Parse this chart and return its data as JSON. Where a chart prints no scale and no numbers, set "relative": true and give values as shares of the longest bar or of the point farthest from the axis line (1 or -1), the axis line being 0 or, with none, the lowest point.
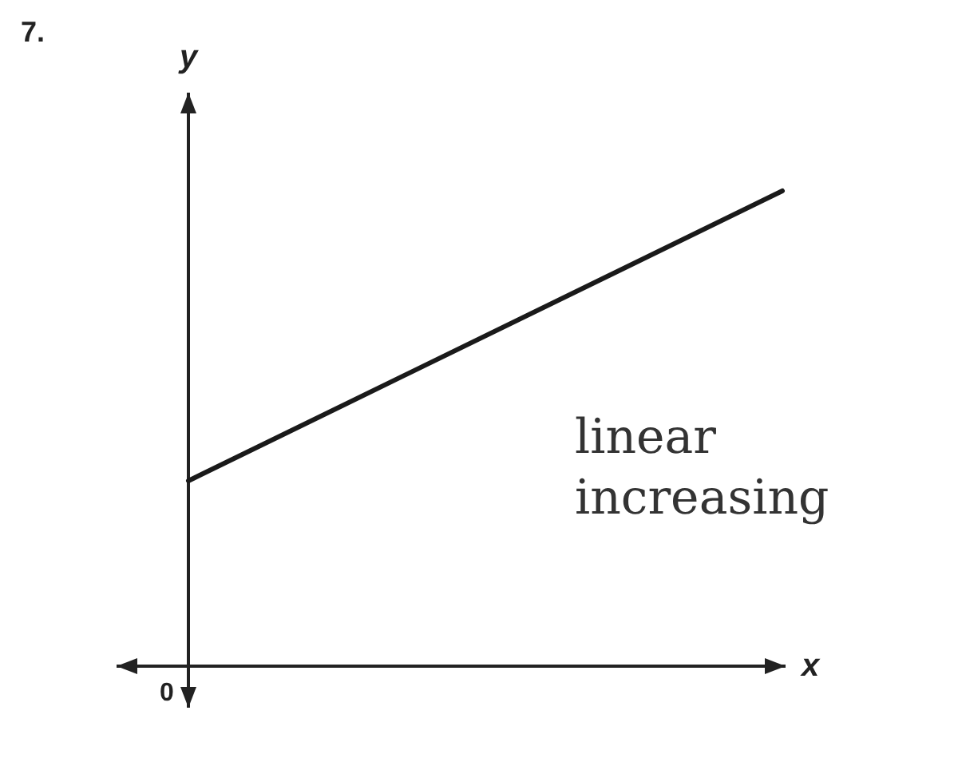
{
  "chart_data": {
    "type": "line",
    "title": "7.",
    "xlabel": "x",
    "ylabel": "y",
    "relative": true,
    "categories": [
      null,
      null
    ],
    "series": [
      {
        "color": "#1a1a1a",
        "values": [
          0.39,
          1
        ]
      }
    ],
    "annotations": [
      "0",
      "linear increasing"
    ],
    "grid": false,
    "marker": "none",
    "line_style": "solid"
  }
}
